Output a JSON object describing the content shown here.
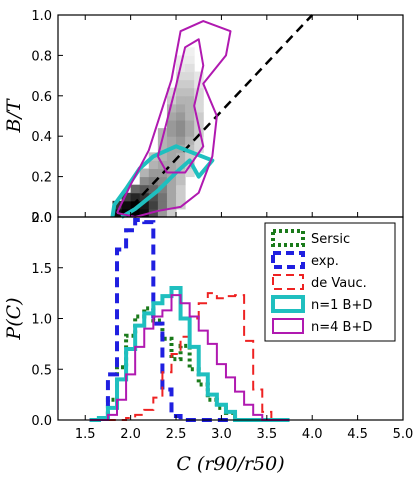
{
  "chart_data": [
    {
      "type": "heatmap",
      "panel": "top",
      "ylabel": "B/T",
      "xlim": [
        1.2,
        5.0
      ],
      "ylim": [
        0.0,
        1.0
      ],
      "yticks": [
        "0.0",
        "0.2",
        "0.4",
        "0.6",
        "0.8",
        "1.0"
      ],
      "grid": false,
      "density_cells": [
        [
          1.85,
          0.02,
          0.95
        ],
        [
          1.95,
          0.02,
          1.0
        ],
        [
          2.05,
          0.02,
          1.0
        ],
        [
          2.15,
          0.02,
          0.95
        ],
        [
          2.25,
          0.02,
          0.7
        ],
        [
          2.35,
          0.02,
          0.4
        ],
        [
          2.45,
          0.02,
          0.2
        ],
        [
          1.85,
          0.06,
          0.8
        ],
        [
          1.95,
          0.06,
          0.95
        ],
        [
          2.05,
          0.06,
          1.0
        ],
        [
          2.15,
          0.06,
          0.9
        ],
        [
          2.25,
          0.06,
          0.75
        ],
        [
          2.35,
          0.06,
          0.55
        ],
        [
          2.45,
          0.06,
          0.35
        ],
        [
          2.55,
          0.06,
          0.2
        ],
        [
          1.95,
          0.1,
          0.75
        ],
        [
          2.05,
          0.1,
          0.85
        ],
        [
          2.15,
          0.1,
          0.8
        ],
        [
          2.25,
          0.1,
          0.7
        ],
        [
          2.35,
          0.1,
          0.55
        ],
        [
          2.45,
          0.1,
          0.35
        ],
        [
          2.55,
          0.1,
          0.2
        ],
        [
          2.05,
          0.14,
          0.6
        ],
        [
          2.15,
          0.14,
          0.65
        ],
        [
          2.25,
          0.14,
          0.6
        ],
        [
          2.35,
          0.14,
          0.5
        ],
        [
          2.45,
          0.14,
          0.35
        ],
        [
          2.55,
          0.14,
          0.2
        ],
        [
          2.15,
          0.18,
          0.45
        ],
        [
          2.25,
          0.18,
          0.5
        ],
        [
          2.35,
          0.18,
          0.45
        ],
        [
          2.45,
          0.18,
          0.35
        ],
        [
          2.55,
          0.18,
          0.25
        ],
        [
          2.15,
          0.22,
          0.3
        ],
        [
          2.25,
          0.22,
          0.4
        ],
        [
          2.35,
          0.22,
          0.4
        ],
        [
          2.45,
          0.22,
          0.35
        ],
        [
          2.55,
          0.22,
          0.25
        ],
        [
          2.65,
          0.22,
          0.15
        ],
        [
          2.25,
          0.26,
          0.3
        ],
        [
          2.35,
          0.26,
          0.35
        ],
        [
          2.45,
          0.26,
          0.35
        ],
        [
          2.55,
          0.26,
          0.3
        ],
        [
          2.65,
          0.26,
          0.2
        ],
        [
          2.25,
          0.3,
          0.25
        ],
        [
          2.35,
          0.3,
          0.3
        ],
        [
          2.45,
          0.3,
          0.35
        ],
        [
          2.55,
          0.3,
          0.3
        ],
        [
          2.65,
          0.3,
          0.2
        ],
        [
          2.35,
          0.34,
          0.3
        ],
        [
          2.45,
          0.34,
          0.35
        ],
        [
          2.55,
          0.34,
          0.35
        ],
        [
          2.65,
          0.34,
          0.25
        ],
        [
          2.75,
          0.34,
          0.15
        ],
        [
          2.35,
          0.38,
          0.3
        ],
        [
          2.45,
          0.38,
          0.35
        ],
        [
          2.55,
          0.38,
          0.4
        ],
        [
          2.65,
          0.38,
          0.3
        ],
        [
          2.75,
          0.38,
          0.15
        ],
        [
          2.35,
          0.42,
          0.3
        ],
        [
          2.45,
          0.42,
          0.4
        ],
        [
          2.55,
          0.42,
          0.45
        ],
        [
          2.65,
          0.42,
          0.35
        ],
        [
          2.75,
          0.42,
          0.2
        ],
        [
          2.45,
          0.46,
          0.4
        ],
        [
          2.55,
          0.46,
          0.45
        ],
        [
          2.65,
          0.46,
          0.35
        ],
        [
          2.75,
          0.46,
          0.2
        ],
        [
          2.45,
          0.5,
          0.35
        ],
        [
          2.55,
          0.5,
          0.4
        ],
        [
          2.65,
          0.5,
          0.3
        ],
        [
          2.75,
          0.5,
          0.2
        ],
        [
          2.45,
          0.54,
          0.3
        ],
        [
          2.55,
          0.54,
          0.35
        ],
        [
          2.65,
          0.54,
          0.3
        ],
        [
          2.75,
          0.54,
          0.15
        ],
        [
          2.45,
          0.58,
          0.2
        ],
        [
          2.55,
          0.58,
          0.3
        ],
        [
          2.65,
          0.58,
          0.3
        ],
        [
          2.75,
          0.58,
          0.15
        ],
        [
          2.45,
          0.62,
          0.15
        ],
        [
          2.55,
          0.62,
          0.25
        ],
        [
          2.65,
          0.62,
          0.25
        ],
        [
          2.75,
          0.62,
          0.15
        ],
        [
          2.55,
          0.66,
          0.2
        ],
        [
          2.65,
          0.66,
          0.2
        ],
        [
          2.75,
          0.66,
          0.1
        ],
        [
          2.55,
          0.7,
          0.15
        ],
        [
          2.65,
          0.7,
          0.15
        ],
        [
          2.75,
          0.7,
          0.1
        ],
        [
          2.55,
          0.74,
          0.1
        ],
        [
          2.65,
          0.74,
          0.12
        ],
        [
          2.55,
          0.78,
          0.08
        ],
        [
          2.65,
          0.78,
          0.08
        ],
        [
          2.65,
          0.82,
          0.06
        ]
      ],
      "reference_line": [
        [
          1.9,
          0.0
        ],
        [
          4.0,
          1.0
        ]
      ],
      "contours": [
        {
          "label": "n=1 B+D",
          "color": "#1fbfbf",
          "width": 4,
          "points": [
            [
              1.8,
              0.0
            ],
            [
              1.82,
              0.06
            ],
            [
              1.95,
              0.14
            ],
            [
              2.1,
              0.24
            ],
            [
              2.25,
              0.3
            ],
            [
              2.5,
              0.35
            ],
            [
              2.9,
              0.28
            ],
            [
              2.75,
              0.2
            ],
            [
              2.65,
              0.28
            ],
            [
              2.5,
              0.22
            ],
            [
              2.3,
              0.13
            ],
            [
              2.05,
              0.04
            ],
            [
              1.9,
              0.0
            ]
          ]
        },
        {
          "label": "n=4 B+D",
          "color": "#b019b0",
          "width": 2,
          "points": [
            [
              1.85,
              0.02
            ],
            [
              2.0,
              0.16
            ],
            [
              2.2,
              0.33
            ],
            [
              2.45,
              0.68
            ],
            [
              2.55,
              0.92
            ],
            [
              2.8,
              0.97
            ],
            [
              3.1,
              0.92
            ],
            [
              3.05,
              0.8
            ],
            [
              2.8,
              0.66
            ],
            [
              2.95,
              0.5
            ],
            [
              2.9,
              0.3
            ],
            [
              2.75,
              0.12
            ],
            [
              2.55,
              0.05
            ],
            [
              2.3,
              0.03
            ],
            [
              2.05,
              0.0
            ],
            [
              1.85,
              0.02
            ]
          ]
        },
        {
          "label": "n=4 B+D",
          "color": "#b019b0",
          "width": 2,
          "points": [
            [
              2.3,
              0.3
            ],
            [
              2.5,
              0.65
            ],
            [
              2.6,
              0.84
            ],
            [
              2.75,
              0.88
            ],
            [
              2.8,
              0.75
            ],
            [
              2.7,
              0.55
            ],
            [
              2.8,
              0.35
            ],
            [
              2.6,
              0.22
            ],
            [
              2.4,
              0.22
            ],
            [
              2.3,
              0.3
            ]
          ]
        }
      ]
    },
    {
      "type": "line",
      "panel": "bottom",
      "xlabel": "C (r90/r50)",
      "ylabel": "P(C)",
      "xlim": [
        1.2,
        5.0
      ],
      "ylim": [
        0.0,
        2.0
      ],
      "xticks": [
        "1.5",
        "2.0",
        "2.5",
        "3.0",
        "3.5",
        "4.0",
        "4.5",
        "5.0"
      ],
      "yticks": [
        "0.0",
        "0.5",
        "1.0",
        "1.5",
        "2.0"
      ],
      "legend_position": "upper right",
      "grid": false,
      "x": [
        1.6,
        1.7,
        1.8,
        1.9,
        2.0,
        2.1,
        2.2,
        2.3,
        2.4,
        2.5,
        2.6,
        2.7,
        2.8,
        2.9,
        3.0,
        3.1,
        3.2,
        3.3,
        3.4,
        3.5,
        3.6,
        3.7
      ],
      "series": [
        {
          "name": "Sersic",
          "color": "#1a7a1a",
          "dash": "dotted",
          "width": 4,
          "values": [
            0.0,
            0.02,
            0.2,
            0.52,
            0.83,
            1.02,
            1.1,
            0.98,
            0.8,
            0.6,
            0.73,
            0.5,
            0.35,
            0.2,
            0.12,
            0.07,
            0.0,
            0.0,
            0.0,
            0.0,
            0.0,
            0.0
          ]
        },
        {
          "name": "exp.",
          "color": "#1f1fe0",
          "dash": "dashed",
          "width": 4,
          "values": [
            0.0,
            0.02,
            0.45,
            1.68,
            1.87,
            1.97,
            1.95,
            0.95,
            0.3,
            0.04,
            0.0,
            0.0,
            0.0,
            0.0,
            0.0,
            0.0,
            0.0,
            0.0,
            0.0,
            0.0,
            0.0,
            0.0
          ]
        },
        {
          "name": "de Vauc.",
          "color": "#ee2222",
          "dash": "dashed",
          "width": 2,
          "values": [
            0.0,
            0.0,
            0.0,
            0.0,
            0.02,
            0.05,
            0.1,
            0.22,
            0.47,
            0.65,
            0.82,
            1.0,
            1.15,
            1.25,
            1.2,
            1.22,
            1.23,
            0.78,
            0.3,
            0.08,
            0.0,
            0.0
          ]
        },
        {
          "name": "n=1 B+D",
          "color": "#1fbfbf",
          "dash": "solid",
          "width": 4,
          "values": [
            0.0,
            0.02,
            0.12,
            0.4,
            0.7,
            0.93,
            1.05,
            1.15,
            1.22,
            1.3,
            1.0,
            0.72,
            0.45,
            0.25,
            0.15,
            0.08,
            0.0,
            0.0,
            0.0,
            0.0,
            0.0,
            0.0
          ]
        },
        {
          "name": "n=4 B+D",
          "color": "#b019b0",
          "dash": "solid",
          "width": 2,
          "values": [
            0.0,
            0.0,
            0.05,
            0.2,
            0.45,
            0.72,
            0.9,
            1.02,
            1.08,
            1.23,
            1.15,
            1.02,
            0.88,
            0.75,
            0.55,
            0.42,
            0.28,
            0.15,
            0.05,
            0.0,
            0.0,
            0.0
          ]
        }
      ]
    }
  ]
}
